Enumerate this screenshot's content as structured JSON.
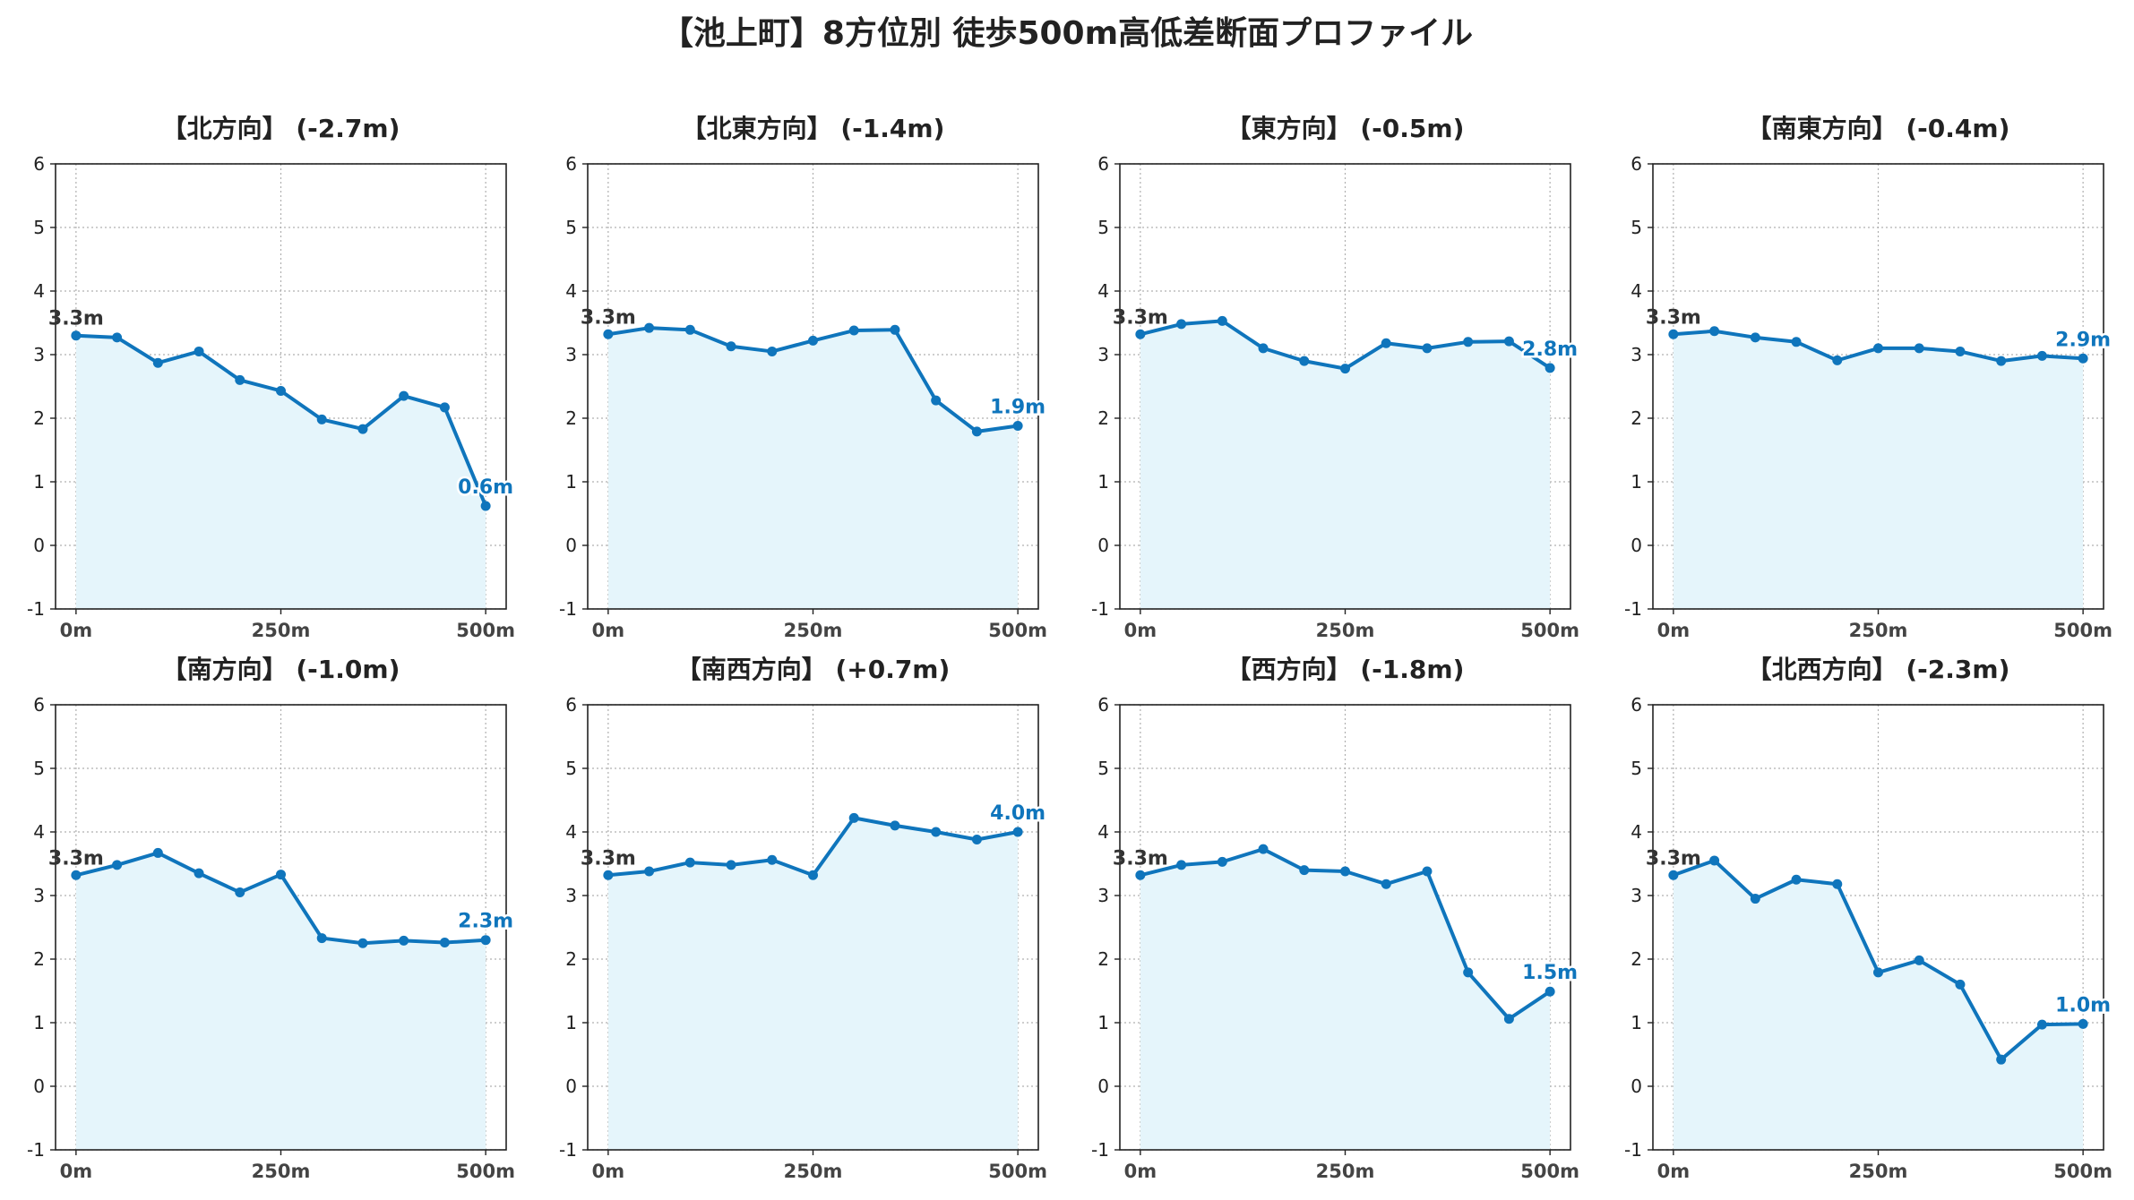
{
  "title": "【池上町】8方位別 徒歩500m高低差断面プロファイル",
  "colors": {
    "line": "#0f75bc",
    "fill": "#e5f5fb",
    "start_label": "#333333",
    "end_label": "#0f75bc",
    "grid": "#b0b0b0"
  },
  "chart_data": [
    {
      "type": "line",
      "title": "【北方向】 (-2.7m)",
      "x": [
        0,
        50,
        100,
        150,
        200,
        250,
        300,
        350,
        400,
        450,
        500
      ],
      "y": [
        3.3,
        3.27,
        2.87,
        3.05,
        2.6,
        2.43,
        1.98,
        1.83,
        2.35,
        2.17,
        0.62
      ],
      "start_label": "3.3m",
      "end_label": "0.6m",
      "ylim": [
        -1,
        6
      ],
      "yticks": [
        "-1",
        "0",
        "1",
        "2",
        "3",
        "4",
        "5",
        "6"
      ],
      "xticks": [
        "0m",
        "250m",
        "500m"
      ],
      "grid": true
    },
    {
      "type": "line",
      "title": "【北東方向】 (-1.4m)",
      "x": [
        0,
        50,
        100,
        150,
        200,
        250,
        300,
        350,
        400,
        450,
        500
      ],
      "y": [
        3.32,
        3.42,
        3.39,
        3.13,
        3.05,
        3.22,
        3.38,
        3.39,
        2.28,
        1.79,
        1.88
      ],
      "start_label": "3.3m",
      "end_label": "1.9m",
      "ylim": [
        -1,
        6
      ],
      "yticks": [
        "-1",
        "0",
        "1",
        "2",
        "3",
        "4",
        "5",
        "6"
      ],
      "xticks": [
        "0m",
        "250m",
        "500m"
      ],
      "grid": true
    },
    {
      "type": "line",
      "title": "【東方向】 (-0.5m)",
      "x": [
        0,
        50,
        100,
        150,
        200,
        250,
        300,
        350,
        400,
        450,
        500
      ],
      "y": [
        3.32,
        3.48,
        3.53,
        3.1,
        2.9,
        2.78,
        3.18,
        3.1,
        3.2,
        3.21,
        2.79
      ],
      "start_label": "3.3m",
      "end_label": "2.8m",
      "ylim": [
        -1,
        6
      ],
      "yticks": [
        "-1",
        "0",
        "1",
        "2",
        "3",
        "4",
        "5",
        "6"
      ],
      "xticks": [
        "0m",
        "250m",
        "500m"
      ],
      "grid": true
    },
    {
      "type": "line",
      "title": "【南東方向】 (-0.4m)",
      "x": [
        0,
        50,
        100,
        150,
        200,
        250,
        300,
        350,
        400,
        450,
        500
      ],
      "y": [
        3.32,
        3.37,
        3.27,
        3.2,
        2.91,
        3.1,
        3.1,
        3.05,
        2.9,
        2.98,
        2.94
      ],
      "start_label": "3.3m",
      "end_label": "2.9m",
      "ylim": [
        -1,
        6
      ],
      "yticks": [
        "-1",
        "0",
        "1",
        "2",
        "3",
        "4",
        "5",
        "6"
      ],
      "xticks": [
        "0m",
        "250m",
        "500m"
      ],
      "grid": true
    },
    {
      "type": "line",
      "title": "【南方向】 (-1.0m)",
      "x": [
        0,
        50,
        100,
        150,
        200,
        250,
        300,
        350,
        400,
        450,
        500
      ],
      "y": [
        3.32,
        3.48,
        3.67,
        3.35,
        3.05,
        3.33,
        2.33,
        2.25,
        2.29,
        2.26,
        2.3
      ],
      "start_label": "3.3m",
      "end_label": "2.3m",
      "ylim": [
        -1,
        6
      ],
      "yticks": [
        "-1",
        "0",
        "1",
        "2",
        "3",
        "4",
        "5",
        "6"
      ],
      "xticks": [
        "0m",
        "250m",
        "500m"
      ],
      "grid": true
    },
    {
      "type": "line",
      "title": "【南西方向】 (+0.7m)",
      "x": [
        0,
        50,
        100,
        150,
        200,
        250,
        300,
        350,
        400,
        450,
        500
      ],
      "y": [
        3.32,
        3.38,
        3.52,
        3.48,
        3.56,
        3.32,
        4.22,
        4.1,
        4.0,
        3.88,
        4.0
      ],
      "start_label": "3.3m",
      "end_label": "4.0m",
      "ylim": [
        -1,
        6
      ],
      "yticks": [
        "-1",
        "0",
        "1",
        "2",
        "3",
        "4",
        "5",
        "6"
      ],
      "xticks": [
        "0m",
        "250m",
        "500m"
      ],
      "grid": true
    },
    {
      "type": "line",
      "title": "【西方向】 (-1.8m)",
      "x": [
        0,
        50,
        100,
        150,
        200,
        250,
        300,
        350,
        400,
        450,
        500
      ],
      "y": [
        3.32,
        3.48,
        3.53,
        3.73,
        3.4,
        3.38,
        3.18,
        3.38,
        1.79,
        1.06,
        1.49
      ],
      "start_label": "3.3m",
      "end_label": "1.5m",
      "ylim": [
        -1,
        6
      ],
      "yticks": [
        "-1",
        "0",
        "1",
        "2",
        "3",
        "4",
        "5",
        "6"
      ],
      "xticks": [
        "0m",
        "250m",
        "500m"
      ],
      "grid": true
    },
    {
      "type": "line",
      "title": "【北西方向】 (-2.3m)",
      "x": [
        0,
        50,
        100,
        150,
        200,
        250,
        300,
        350,
        400,
        450,
        500
      ],
      "y": [
        3.32,
        3.55,
        2.95,
        3.25,
        3.18,
        1.79,
        1.98,
        1.6,
        0.42,
        0.97,
        0.98
      ],
      "start_label": "3.3m",
      "end_label": "1.0m",
      "ylim": [
        -1,
        6
      ],
      "yticks": [
        "-1",
        "0",
        "1",
        "2",
        "3",
        "4",
        "5",
        "6"
      ],
      "xticks": [
        "0m",
        "250m",
        "500m"
      ],
      "grid": true
    }
  ]
}
